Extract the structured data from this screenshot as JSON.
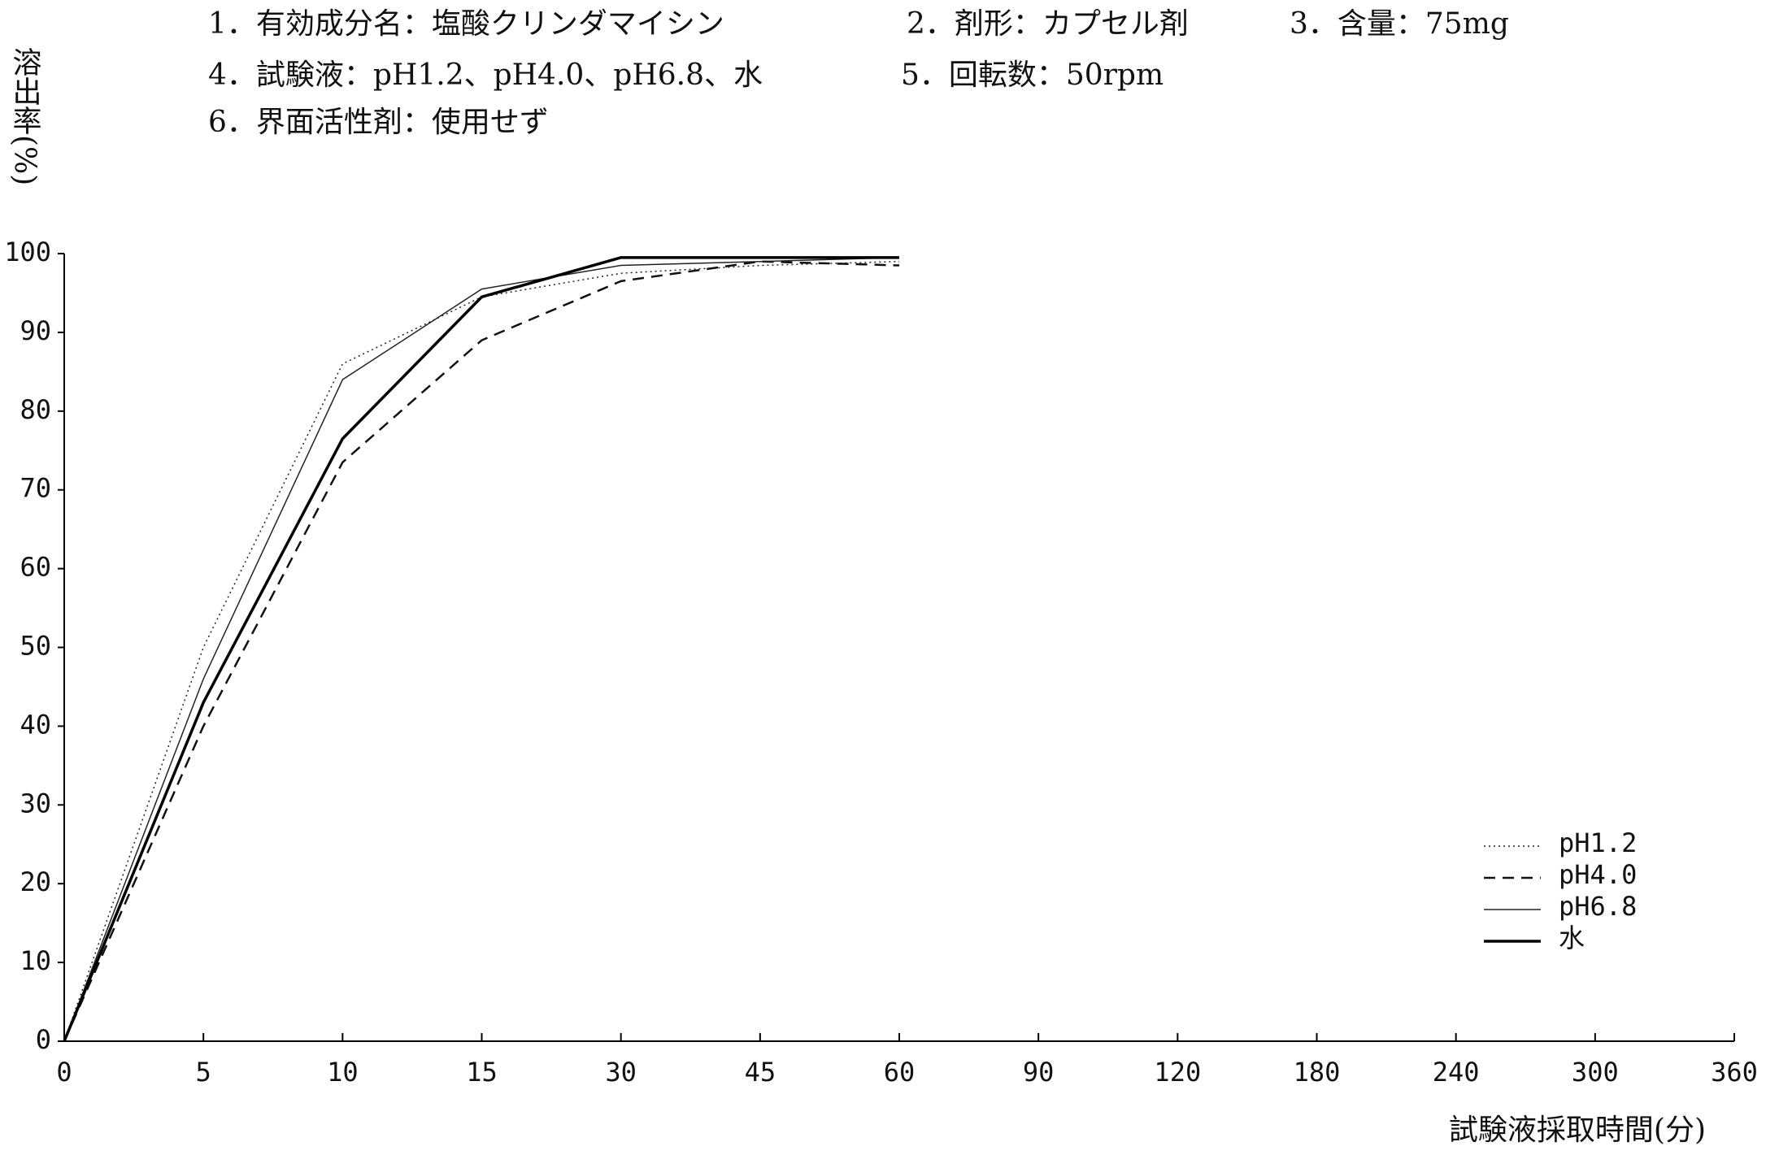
{
  "chart_data": {
    "type": "line",
    "header": [
      [
        "1．有効成分名：塩酸クリンダマイシン",
        "2．剤形：カプセル剤",
        "3．含量：75mg"
      ],
      [
        "4．試験液：pH1.2、pH4.0、pH6.8、水",
        "5．回転数：50rpm"
      ],
      [
        "6．界面活性剤：使用せず"
      ]
    ],
    "y_label": "溶出率(%)",
    "x_label": "試験液採取時間(分)",
    "categories": [
      "0",
      "5",
      "10",
      "15",
      "30",
      "45",
      "60",
      "90",
      "120",
      "180",
      "240",
      "300",
      "360"
    ],
    "series": [
      {
        "name": "pH1.2",
        "color": "#222222",
        "line_style": "dotted",
        "line_width": 1.5,
        "values": [
          0,
          50,
          86,
          94.5,
          97.5,
          98.5,
          99,
          null,
          null,
          null,
          null,
          null,
          null
        ]
      },
      {
        "name": "pH4.0",
        "color": "#111111",
        "line_style": "dashed",
        "line_width": 2.5,
        "values": [
          0,
          40,
          73.5,
          89,
          96.5,
          99,
          98.5,
          null,
          null,
          null,
          null,
          null,
          null
        ]
      },
      {
        "name": "pH6.8",
        "color": "#222222",
        "line_style": "solid",
        "line_width": 1.5,
        "values": [
          0,
          46,
          84,
          95.5,
          98.5,
          99,
          99.5,
          null,
          null,
          null,
          null,
          null,
          null
        ]
      },
      {
        "name": "水",
        "color": "#000000",
        "line_style": "solid",
        "line_width": 3.5,
        "values": [
          0,
          43,
          76.5,
          94.5,
          99.5,
          99.5,
          99.5,
          null,
          null,
          null,
          null,
          null,
          null
        ]
      }
    ],
    "ylim": [
      0,
      100
    ],
    "yticks": [
      0,
      10,
      20,
      30,
      40,
      50,
      60,
      70,
      80,
      90,
      100
    ],
    "grid": false,
    "legend": "lower right"
  }
}
